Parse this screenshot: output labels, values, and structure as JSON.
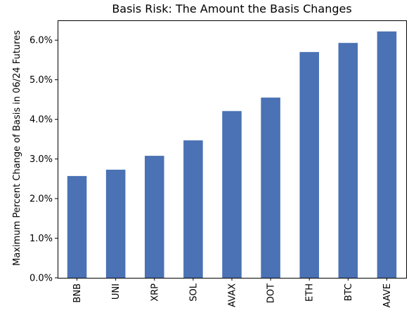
{
  "chart_data": {
    "type": "bar",
    "title": "Basis Risk: The Amount the Basis Changes",
    "xlabel": "",
    "ylabel": "Maximum Percent Change of Basis in 06/24 Futures",
    "categories": [
      "BNB",
      "UNI",
      "XRP",
      "SOL",
      "AVAX",
      "DOT",
      "ETH",
      "BTC",
      "AAVE"
    ],
    "values": [
      2.57,
      2.73,
      3.08,
      3.47,
      4.21,
      4.55,
      5.7,
      5.93,
      6.22
    ],
    "ylim": [
      0,
      6.5
    ],
    "yticks": [
      "0.0%",
      "1.0%",
      "2.0%",
      "3.0%",
      "4.0%",
      "5.0%",
      "6.0%"
    ],
    "ytick_values": [
      0,
      1,
      2,
      3,
      4,
      5,
      6
    ],
    "bar_color": "#4a72b4",
    "grid": false,
    "legend": "none"
  }
}
